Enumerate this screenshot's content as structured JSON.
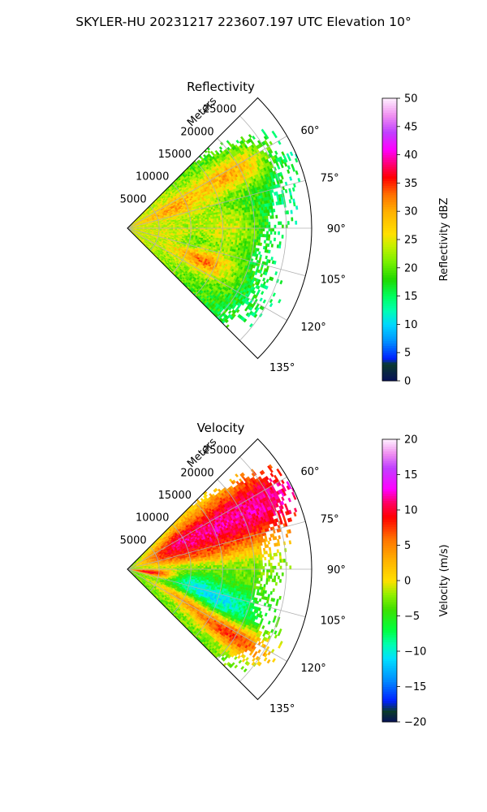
{
  "figure": {
    "suptitle": "SKYLER-HU  20231217  223607.197 UTC Elevation 10°"
  },
  "chart_data": [
    {
      "type": "heatmap",
      "projection": "polar-sector",
      "title": "Reflectivity",
      "range_label": "Meters",
      "azimuth_range_deg": [
        45,
        135
      ],
      "azimuth_ticks_deg": [
        60,
        75,
        90,
        105,
        120,
        135
      ],
      "azimuth_tick_labels": [
        "60°",
        "75°",
        "90°",
        "105°",
        "120°",
        "135°"
      ],
      "range_ticks_m": [
        5000,
        10000,
        15000,
        20000,
        25000
      ],
      "range_tick_labels": [
        "5000",
        "10000",
        "15000",
        "20000",
        "25000"
      ],
      "max_range_m": 29000,
      "grid": true,
      "colorbar": {
        "label": "Reflectivity dBZ",
        "vmin": 0,
        "vmax": 50,
        "ticks": [
          0,
          5,
          10,
          15,
          20,
          25,
          30,
          35,
          40,
          45,
          50
        ],
        "tick_labels": [
          "0",
          "5",
          "10",
          "15",
          "20",
          "25",
          "30",
          "35",
          "40",
          "45",
          "50"
        ],
        "stops": [
          [
            0,
            "#08105a"
          ],
          [
            3,
            "#0a3a2c"
          ],
          [
            4,
            "#0020ff"
          ],
          [
            7,
            "#0090ff"
          ],
          [
            10,
            "#00d8ff"
          ],
          [
            12.5,
            "#00ffb0"
          ],
          [
            15,
            "#00ff60"
          ],
          [
            18,
            "#20d800"
          ],
          [
            21,
            "#78f000"
          ],
          [
            24,
            "#c8f000"
          ],
          [
            26,
            "#ffe000"
          ],
          [
            30,
            "#ffb000"
          ],
          [
            33,
            "#ff7000"
          ],
          [
            36,
            "#ff0000"
          ],
          [
            38,
            "#ff0060"
          ],
          [
            41,
            "#ff00ff"
          ],
          [
            44,
            "#c040ff"
          ],
          [
            47,
            "#f090f0"
          ],
          [
            50,
            "#fff0ff"
          ]
        ]
      },
      "notable_features": [
        {
          "azimuth_deg": 62,
          "range_m": 19000,
          "value_dbz": 36
        },
        {
          "azimuth_deg": 112,
          "range_m": 13000,
          "value_dbz": 37
        },
        {
          "azimuth_deg": 68,
          "range_m": 9000,
          "value_dbz": 33
        },
        {
          "azimuth_deg": 90,
          "range_m": 16000,
          "value_dbz": 29
        },
        {
          "azimuth_deg": 85,
          "range_m": 24000,
          "value_dbz": 20
        }
      ]
    },
    {
      "type": "heatmap",
      "projection": "polar-sector",
      "title": "Velocity",
      "range_label": "Meters",
      "azimuth_range_deg": [
        45,
        135
      ],
      "azimuth_ticks_deg": [
        60,
        75,
        90,
        105,
        120,
        135
      ],
      "azimuth_tick_labels": [
        "60°",
        "75°",
        "90°",
        "105°",
        "120°",
        "135°"
      ],
      "range_ticks_m": [
        5000,
        10000,
        15000,
        20000,
        25000
      ],
      "range_tick_labels": [
        "5000",
        "10000",
        "15000",
        "20000",
        "25000"
      ],
      "max_range_m": 29000,
      "grid": true,
      "colorbar": {
        "label": "Velocity (m/s)",
        "vmin": -20,
        "vmax": 20,
        "ticks": [
          -20,
          -15,
          -10,
          -5,
          0,
          5,
          10,
          15,
          20
        ],
        "tick_labels": [
          "−20",
          "−15",
          "−10",
          "−5",
          "0",
          "5",
          "10",
          "15",
          "20"
        ],
        "stops": [
          [
            -20,
            "#08105a"
          ],
          [
            -18.5,
            "#0a3a2c"
          ],
          [
            -17,
            "#0020ff"
          ],
          [
            -14,
            "#0090ff"
          ],
          [
            -11,
            "#00e0ff"
          ],
          [
            -9,
            "#00ffb0"
          ],
          [
            -7,
            "#00ff40"
          ],
          [
            -4,
            "#40e000"
          ],
          [
            -2,
            "#90f000"
          ],
          [
            0,
            "#ffe000"
          ],
          [
            3,
            "#ffb000"
          ],
          [
            6,
            "#ff7000"
          ],
          [
            9,
            "#ff0000"
          ],
          [
            11,
            "#ff0060"
          ],
          [
            13,
            "#ff00ff"
          ],
          [
            16,
            "#c040ff"
          ],
          [
            18,
            "#f090f0"
          ],
          [
            20,
            "#fff0ff"
          ]
        ]
      },
      "notable_features": [
        {
          "azimuth_deg": 60,
          "range_m": 22000,
          "value_ms": 10
        },
        {
          "azimuth_deg": 75,
          "range_m": 14000,
          "value_ms": 5
        },
        {
          "azimuth_deg": 92,
          "range_m": 18000,
          "value_ms": -4
        },
        {
          "azimuth_deg": 100,
          "range_m": 6000,
          "value_ms": 12
        },
        {
          "azimuth_deg": 112,
          "range_m": 16000,
          "value_ms": -11
        },
        {
          "azimuth_deg": 125,
          "range_m": 20000,
          "value_ms": 16
        }
      ]
    }
  ]
}
